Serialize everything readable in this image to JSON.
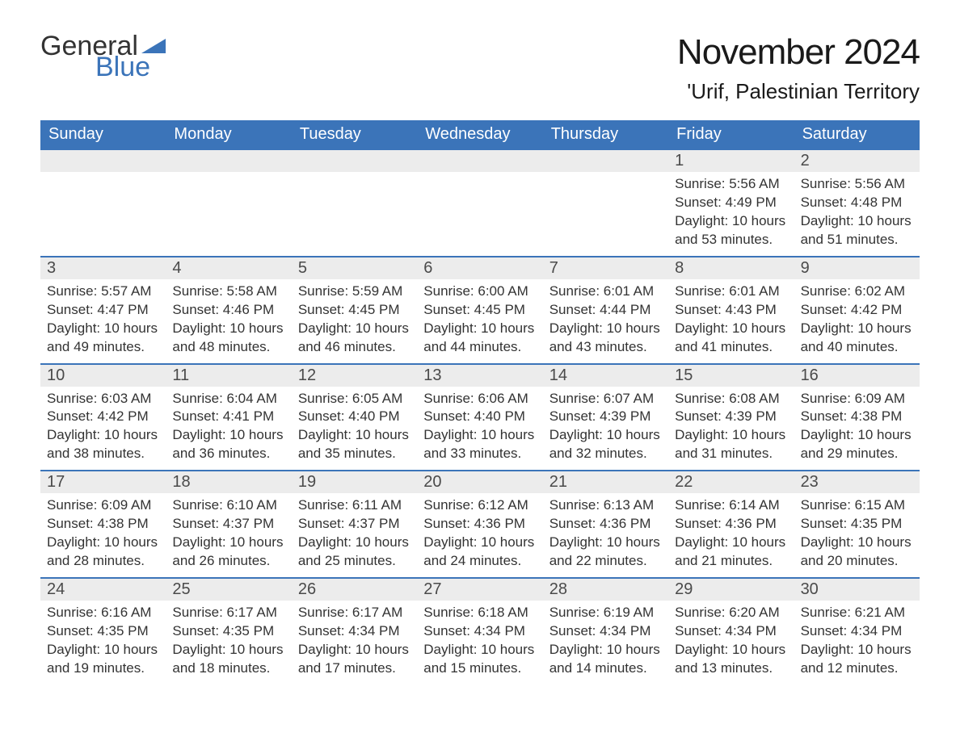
{
  "logo": {
    "text1": "General",
    "text2": "Blue",
    "triangle_color": "#3b74b9"
  },
  "title": "November 2024",
  "location": "'Urif, Palestinian Territory",
  "colors": {
    "header_bg": "#3b74b9",
    "header_text": "#ffffff",
    "daynum_bg": "#ececec",
    "daynum_text": "#4a4a4a",
    "body_text": "#333333",
    "border": "#3b74b9",
    "page_bg": "#ffffff"
  },
  "font": {
    "family": "Arial",
    "header_size": 20,
    "title_size": 44,
    "location_size": 26,
    "body_size": 17
  },
  "day_headers": [
    "Sunday",
    "Monday",
    "Tuesday",
    "Wednesday",
    "Thursday",
    "Friday",
    "Saturday"
  ],
  "weeks": [
    [
      null,
      null,
      null,
      null,
      null,
      {
        "num": "1",
        "sunrise": "5:56 AM",
        "sunset": "4:49 PM",
        "daylight": "10 hours and 53 minutes."
      },
      {
        "num": "2",
        "sunrise": "5:56 AM",
        "sunset": "4:48 PM",
        "daylight": "10 hours and 51 minutes."
      }
    ],
    [
      {
        "num": "3",
        "sunrise": "5:57 AM",
        "sunset": "4:47 PM",
        "daylight": "10 hours and 49 minutes."
      },
      {
        "num": "4",
        "sunrise": "5:58 AM",
        "sunset": "4:46 PM",
        "daylight": "10 hours and 48 minutes."
      },
      {
        "num": "5",
        "sunrise": "5:59 AM",
        "sunset": "4:45 PM",
        "daylight": "10 hours and 46 minutes."
      },
      {
        "num": "6",
        "sunrise": "6:00 AM",
        "sunset": "4:45 PM",
        "daylight": "10 hours and 44 minutes."
      },
      {
        "num": "7",
        "sunrise": "6:01 AM",
        "sunset": "4:44 PM",
        "daylight": "10 hours and 43 minutes."
      },
      {
        "num": "8",
        "sunrise": "6:01 AM",
        "sunset": "4:43 PM",
        "daylight": "10 hours and 41 minutes."
      },
      {
        "num": "9",
        "sunrise": "6:02 AM",
        "sunset": "4:42 PM",
        "daylight": "10 hours and 40 minutes."
      }
    ],
    [
      {
        "num": "10",
        "sunrise": "6:03 AM",
        "sunset": "4:42 PM",
        "daylight": "10 hours and 38 minutes."
      },
      {
        "num": "11",
        "sunrise": "6:04 AM",
        "sunset": "4:41 PM",
        "daylight": "10 hours and 36 minutes."
      },
      {
        "num": "12",
        "sunrise": "6:05 AM",
        "sunset": "4:40 PM",
        "daylight": "10 hours and 35 minutes."
      },
      {
        "num": "13",
        "sunrise": "6:06 AM",
        "sunset": "4:40 PM",
        "daylight": "10 hours and 33 minutes."
      },
      {
        "num": "14",
        "sunrise": "6:07 AM",
        "sunset": "4:39 PM",
        "daylight": "10 hours and 32 minutes."
      },
      {
        "num": "15",
        "sunrise": "6:08 AM",
        "sunset": "4:39 PM",
        "daylight": "10 hours and 31 minutes."
      },
      {
        "num": "16",
        "sunrise": "6:09 AM",
        "sunset": "4:38 PM",
        "daylight": "10 hours and 29 minutes."
      }
    ],
    [
      {
        "num": "17",
        "sunrise": "6:09 AM",
        "sunset": "4:38 PM",
        "daylight": "10 hours and 28 minutes."
      },
      {
        "num": "18",
        "sunrise": "6:10 AM",
        "sunset": "4:37 PM",
        "daylight": "10 hours and 26 minutes."
      },
      {
        "num": "19",
        "sunrise": "6:11 AM",
        "sunset": "4:37 PM",
        "daylight": "10 hours and 25 minutes."
      },
      {
        "num": "20",
        "sunrise": "6:12 AM",
        "sunset": "4:36 PM",
        "daylight": "10 hours and 24 minutes."
      },
      {
        "num": "21",
        "sunrise": "6:13 AM",
        "sunset": "4:36 PM",
        "daylight": "10 hours and 22 minutes."
      },
      {
        "num": "22",
        "sunrise": "6:14 AM",
        "sunset": "4:36 PM",
        "daylight": "10 hours and 21 minutes."
      },
      {
        "num": "23",
        "sunrise": "6:15 AM",
        "sunset": "4:35 PM",
        "daylight": "10 hours and 20 minutes."
      }
    ],
    [
      {
        "num": "24",
        "sunrise": "6:16 AM",
        "sunset": "4:35 PM",
        "daylight": "10 hours and 19 minutes."
      },
      {
        "num": "25",
        "sunrise": "6:17 AM",
        "sunset": "4:35 PM",
        "daylight": "10 hours and 18 minutes."
      },
      {
        "num": "26",
        "sunrise": "6:17 AM",
        "sunset": "4:34 PM",
        "daylight": "10 hours and 17 minutes."
      },
      {
        "num": "27",
        "sunrise": "6:18 AM",
        "sunset": "4:34 PM",
        "daylight": "10 hours and 15 minutes."
      },
      {
        "num": "28",
        "sunrise": "6:19 AM",
        "sunset": "4:34 PM",
        "daylight": "10 hours and 14 minutes."
      },
      {
        "num": "29",
        "sunrise": "6:20 AM",
        "sunset": "4:34 PM",
        "daylight": "10 hours and 13 minutes."
      },
      {
        "num": "30",
        "sunrise": "6:21 AM",
        "sunset": "4:34 PM",
        "daylight": "10 hours and 12 minutes."
      }
    ]
  ],
  "labels": {
    "sunrise": "Sunrise:",
    "sunset": "Sunset:",
    "daylight": "Daylight:"
  }
}
